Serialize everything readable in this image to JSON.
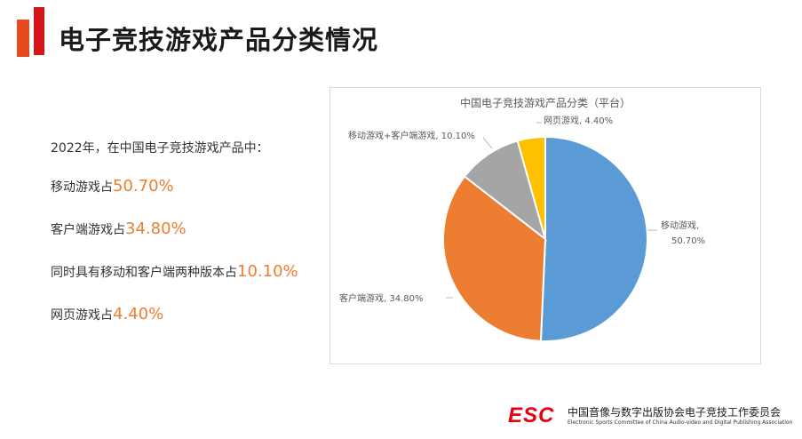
{
  "page": {
    "title": "电子竞技游戏产品分类情况"
  },
  "summary": {
    "intro": "2022年，在中国电子竞技游戏产品中：",
    "items": [
      {
        "label": "移动游戏占",
        "value": "50.70%"
      },
      {
        "label": "客户端游戏占",
        "value": "34.80%"
      },
      {
        "label": "同时具有移动和客户端两种版本占",
        "value": "10.10%"
      },
      {
        "label": "网页游戏占",
        "value": "4.40%"
      }
    ]
  },
  "chart_data": {
    "type": "pie",
    "title": "中国电子竞技游戏产品分类（平台）",
    "slices": [
      {
        "name": "移动游戏",
        "value": 50.7,
        "label": "50.70%",
        "color": "#5b9bd5"
      },
      {
        "name": "客户端游戏",
        "value": 34.8,
        "label": "34.80%",
        "color": "#ed7d31"
      },
      {
        "name": "移动游戏+客户端游戏",
        "value": 10.1,
        "label": "10.10%",
        "color": "#a5a5a5"
      },
      {
        "name": "网页游戏",
        "value": 4.4,
        "label": "4.40%",
        "color": "#ffc000"
      }
    ],
    "start_position": "12 o'clock",
    "direction": "clockwise",
    "legend": "none"
  },
  "footer": {
    "logo_text": "ESC",
    "org_cn": "中国音像与数字出版协会电子竞技工作委员会",
    "org_en": "Electronic Sports Committee of China Audio-video and Digital Publishing Association"
  },
  "colors": {
    "accent_orange": "#e84a1b",
    "accent_red": "#d4161a",
    "value_highlight": "#ed7d31"
  }
}
